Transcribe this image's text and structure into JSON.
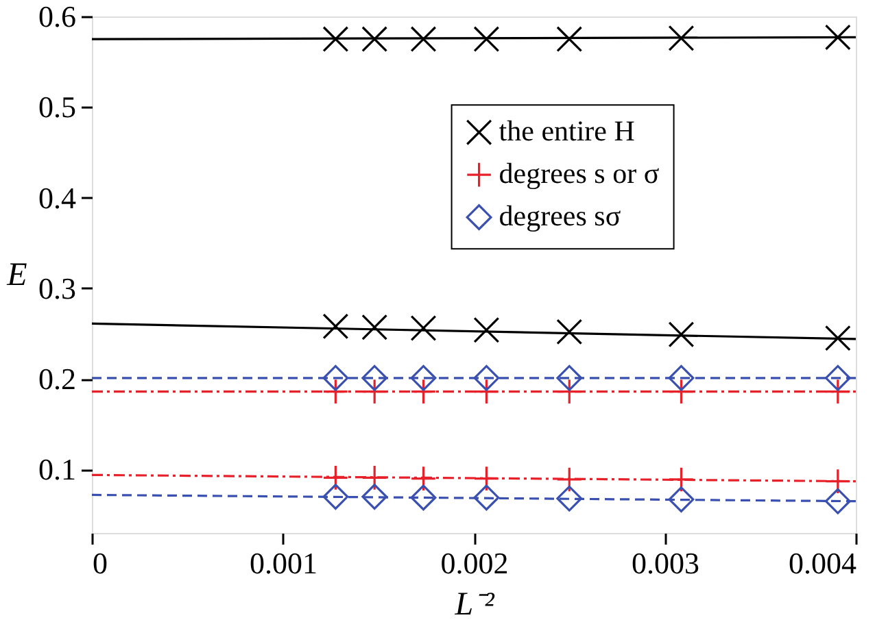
{
  "chart_data": {
    "type": "scatter",
    "xlabel": "L⁻²",
    "ylabel": "E",
    "xlim": [
      0,
      0.004
    ],
    "ylim": [
      0.03,
      0.6
    ],
    "xticks": [
      0,
      0.001,
      0.002,
      0.003,
      0.004
    ],
    "yticks": [
      0.1,
      0.2,
      0.3,
      0.4,
      0.5,
      0.6
    ],
    "grid": false,
    "legend": "top right",
    "series": [
      {
        "type": "line",
        "color": "#000000",
        "marker": "none",
        "line_style": "solid",
        "x": [
          0,
          0.004
        ],
        "values": [
          0.575,
          0.577
        ]
      },
      {
        "type": "line",
        "color": "#000000",
        "marker": "none",
        "line_style": "solid",
        "x": [
          0,
          0.004
        ],
        "values": [
          0.261,
          0.244
        ]
      },
      {
        "type": "line",
        "color": "#3a50b0",
        "marker": "none",
        "line_style": "dashed",
        "x": [
          0,
          0.004
        ],
        "values": [
          0.201,
          0.201
        ]
      },
      {
        "type": "line",
        "color": "#e8202a",
        "marker": "none",
        "line_style": "dashdot",
        "x": [
          0,
          0.004
        ],
        "values": [
          0.186,
          0.186
        ]
      },
      {
        "type": "line",
        "color": "#e8202a",
        "marker": "none",
        "line_style": "dashdot",
        "x": [
          0,
          0.004
        ],
        "values": [
          0.094,
          0.087
        ]
      },
      {
        "type": "line",
        "color": "#3a50b0",
        "marker": "none",
        "line_style": "dashed",
        "x": [
          0,
          0.004
        ],
        "values": [
          0.072,
          0.065
        ]
      },
      {
        "name": "the entire H",
        "color": "#000000",
        "marker": "x",
        "x": [
          0.001276,
          0.00148,
          0.001736,
          0.002066,
          0.0025,
          0.003086,
          0.003906
        ],
        "values": [
          0.575,
          0.575,
          0.575,
          0.575,
          0.575,
          0.576,
          0.577
        ]
      },
      {
        "color": "#000000",
        "marker": "x",
        "x": [
          0.001276,
          0.00148,
          0.001736,
          0.002066,
          0.0025,
          0.003086,
          0.003906
        ],
        "values": [
          0.258,
          0.257,
          0.256,
          0.254,
          0.252,
          0.249,
          0.245
        ]
      },
      {
        "name": "degrees s or σ",
        "color": "#e8202a",
        "marker": "cross",
        "x": [
          0.001276,
          0.00148,
          0.001736,
          0.002066,
          0.0025,
          0.003086,
          0.003906
        ],
        "values": [
          0.186,
          0.186,
          0.186,
          0.186,
          0.186,
          0.186,
          0.186
        ]
      },
      {
        "color": "#e8202a",
        "marker": "cross",
        "x": [
          0.001276,
          0.00148,
          0.001736,
          0.002066,
          0.0025,
          0.003086,
          0.003906
        ],
        "values": [
          0.091,
          0.091,
          0.09,
          0.09,
          0.089,
          0.089,
          0.087
        ]
      },
      {
        "name": "degrees sσ",
        "color": "#3a50b0",
        "marker": "diamond",
        "x": [
          0.001276,
          0.00148,
          0.001736,
          0.002066,
          0.0025,
          0.003086,
          0.003906
        ],
        "values": [
          0.201,
          0.201,
          0.201,
          0.201,
          0.201,
          0.201,
          0.201
        ]
      },
      {
        "color": "#3a50b0",
        "marker": "diamond",
        "x": [
          0.001276,
          0.00148,
          0.001736,
          0.002066,
          0.0025,
          0.003086,
          0.003906
        ],
        "values": [
          0.07,
          0.07,
          0.069,
          0.069,
          0.068,
          0.067,
          0.065
        ]
      }
    ]
  }
}
